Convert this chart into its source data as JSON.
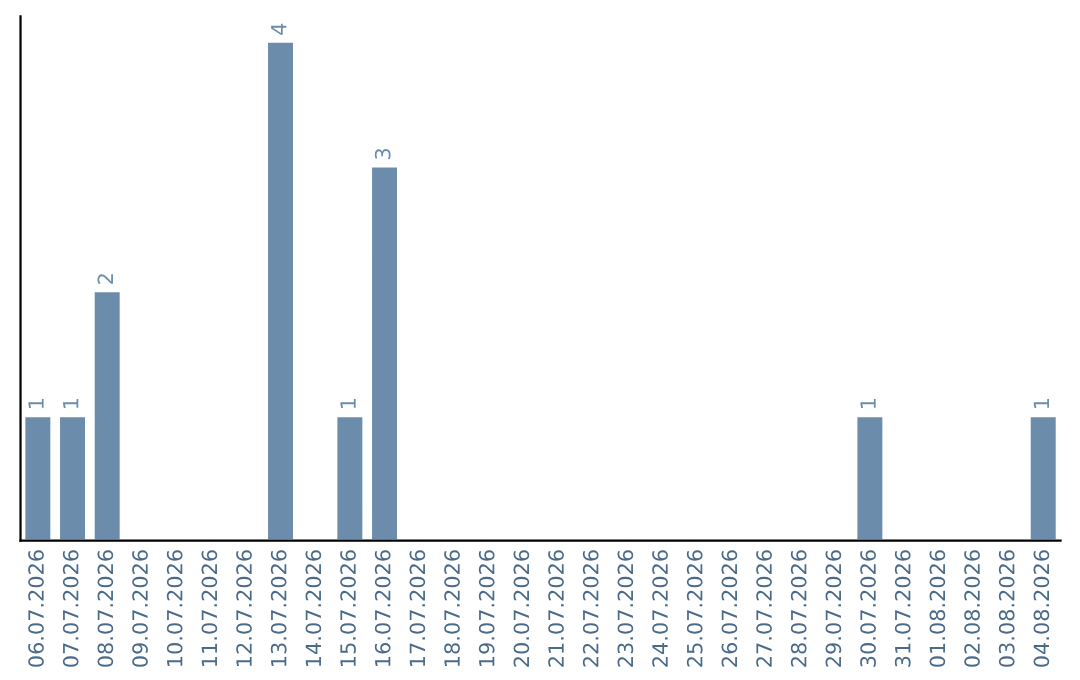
{
  "chart_data": {
    "type": "bar",
    "categories": [
      "06.07.2026",
      "07.07.2026",
      "08.07.2026",
      "09.07.2026",
      "10.07.2026",
      "11.07.2026",
      "12.07.2026",
      "13.07.2026",
      "14.07.2026",
      "15.07.2026",
      "16.07.2026",
      "17.07.2026",
      "18.07.2026",
      "19.07.2026",
      "20.07.2026",
      "21.07.2026",
      "22.07.2026",
      "23.07.2026",
      "24.07.2026",
      "25.07.2026",
      "26.07.2026",
      "27.07.2026",
      "28.07.2026",
      "29.07.2026",
      "30.07.2026",
      "31.07.2026",
      "01.08.2026",
      "02.08.2026",
      "03.08.2026",
      "04.08.2026"
    ],
    "values": [
      1,
      1,
      2,
      null,
      null,
      null,
      null,
      4,
      null,
      1,
      3,
      null,
      null,
      null,
      null,
      null,
      null,
      null,
      null,
      null,
      null,
      null,
      null,
      null,
      1,
      null,
      null,
      null,
      null,
      1
    ],
    "data_labels": true,
    "color": "#6b8cab",
    "ylim": [
      0,
      4.2
    ],
    "grid": false
  }
}
